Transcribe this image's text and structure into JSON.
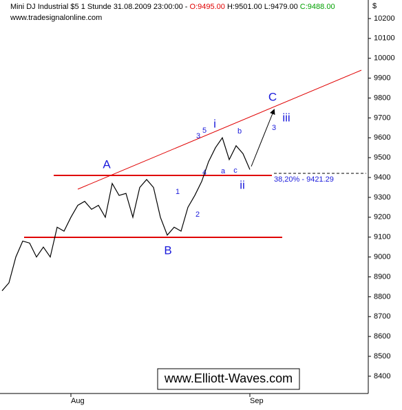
{
  "chart_data": {
    "type": "line",
    "title": "Mini DJ Industrial $5 1 Stunde",
    "datetime": "31.08.2009 23:00:00 -",
    "open": "O:9495.00",
    "high": "H:9501.00",
    "low": "L:9479.00",
    "close": "C:9488.00",
    "subtitle": "www.tradesignalonline.com",
    "currency": "$",
    "watermark": "www.Elliott-Waves.com",
    "fib_label": "38,20% - 9421.29",
    "annotations": [
      "A",
      "B",
      "C",
      "i",
      "ii",
      "iii",
      "1",
      "2",
      "3",
      "5",
      "4",
      "a",
      "b",
      "c",
      "3"
    ],
    "categories": [
      null,
      null,
      null,
      null,
      null,
      null,
      null,
      null,
      null,
      null,
      "Aug",
      null,
      null,
      null,
      null,
      null,
      null,
      null,
      null,
      null,
      null,
      null,
      null,
      null,
      null,
      null,
      null,
      null,
      null,
      null,
      null,
      null,
      null,
      null,
      null,
      null,
      "Sep"
    ],
    "series": [
      {
        "name": "Mini DJ Industrial",
        "color": "#000000",
        "values": [
          8830,
          8870,
          9000,
          9080,
          9070,
          9000,
          9050,
          9000,
          9150,
          9130,
          9200,
          9260,
          9280,
          9240,
          9260,
          9200,
          9370,
          9310,
          9320,
          9200,
          9350,
          9390,
          9350,
          9200,
          9110,
          9150,
          9130,
          9250,
          9310,
          9380,
          9480,
          9550,
          9600,
          9490,
          9560,
          9520,
          9440
        ]
      }
    ],
    "ylim": [
      8320,
      10276
    ],
    "yticks": [
      8400,
      8500,
      8600,
      8700,
      8800,
      8900,
      9000,
      9100,
      9200,
      9300,
      9400,
      9500,
      9600,
      9700,
      9800,
      9900,
      10000,
      10100,
      10200
    ]
  }
}
